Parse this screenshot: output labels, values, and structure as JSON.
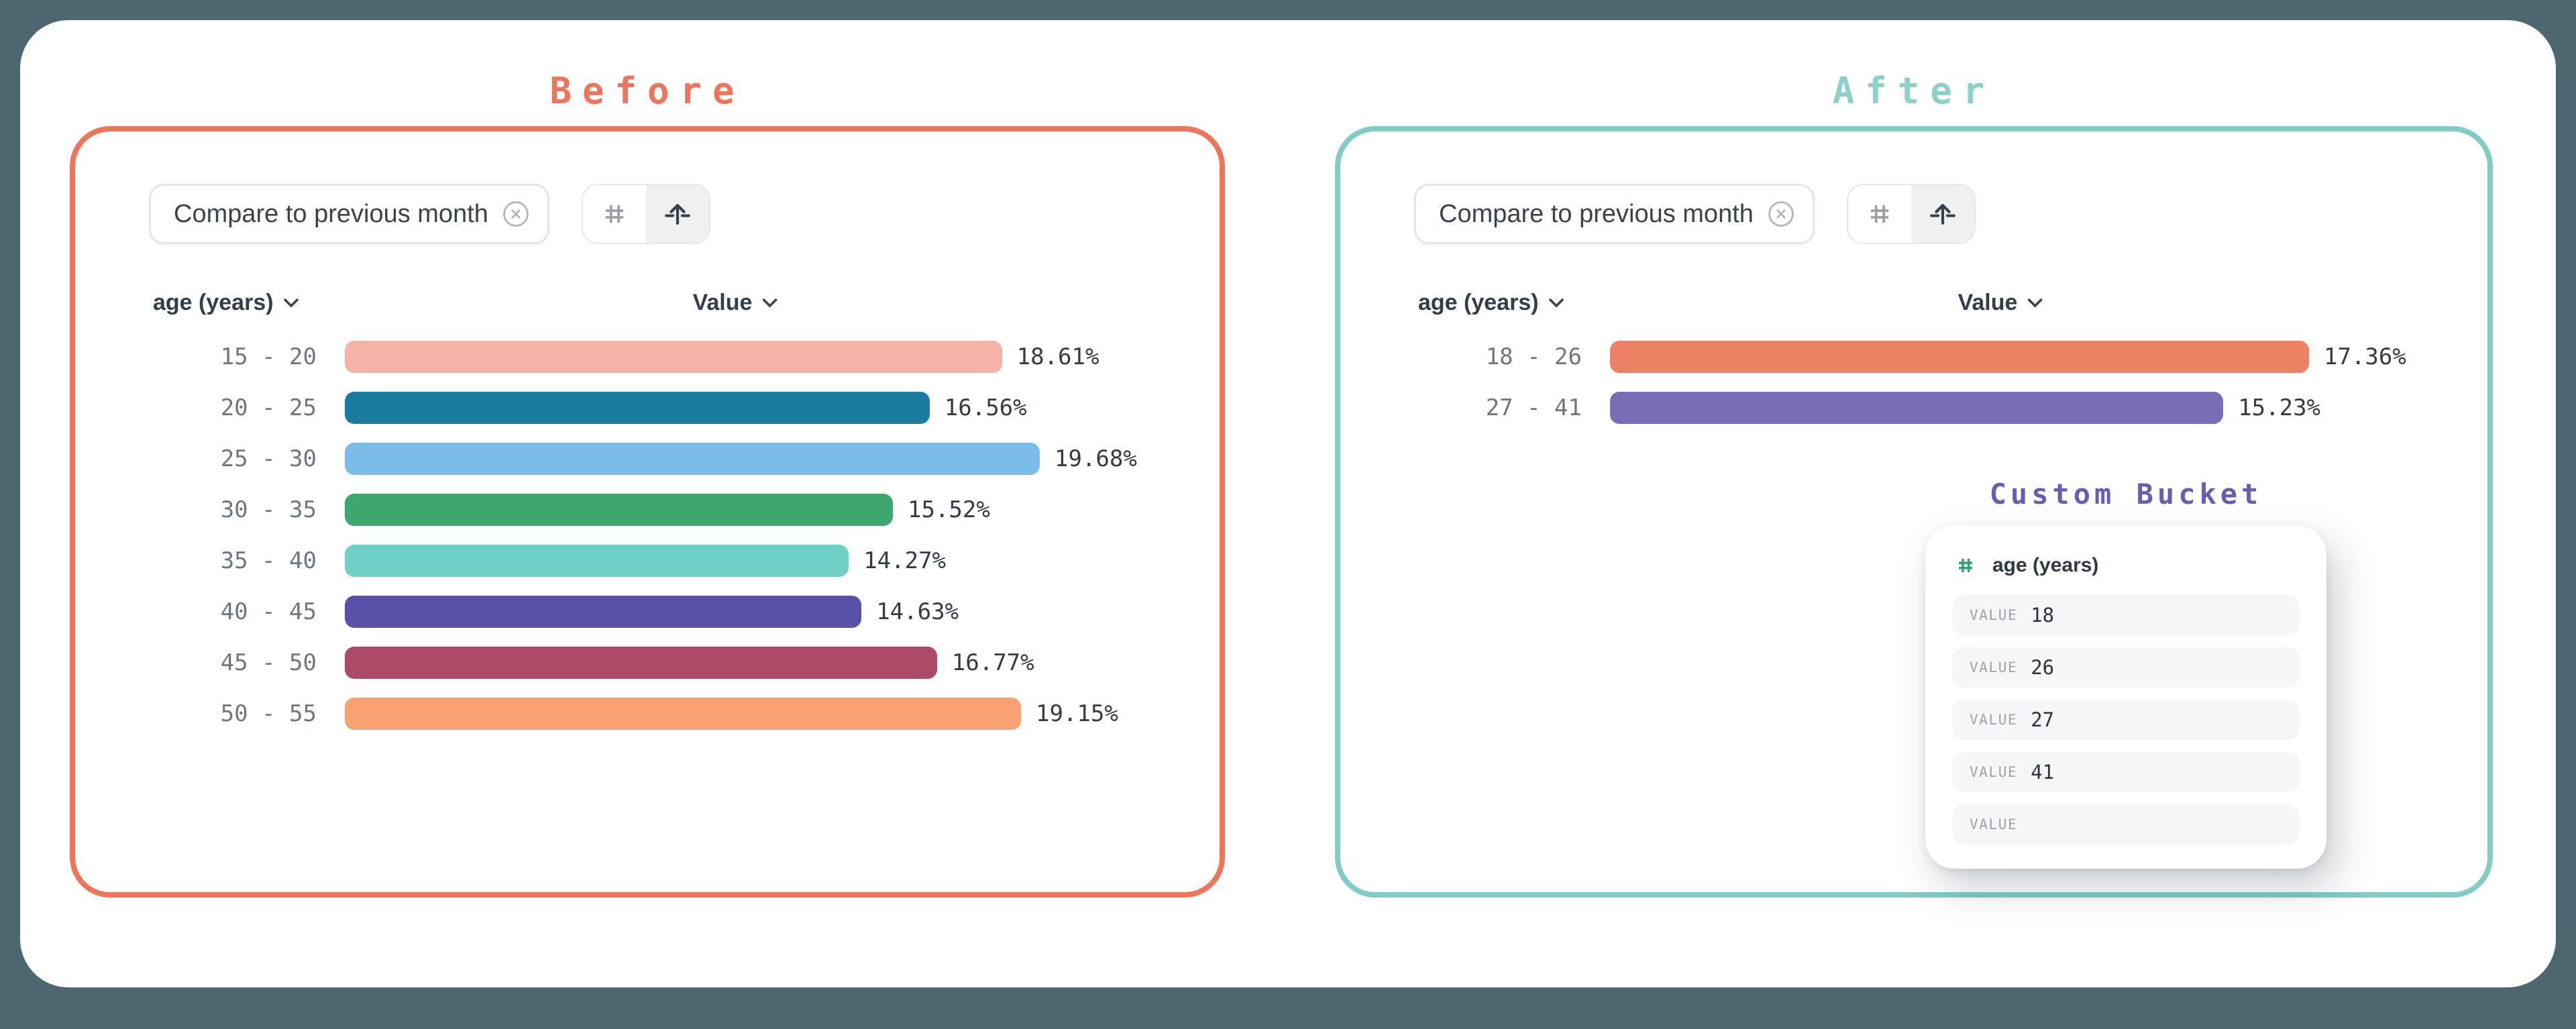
{
  "page": {
    "background": "#4C6770",
    "canvas_background": "#FFFFFF"
  },
  "before": {
    "title": "Before",
    "title_color": "#F0745A",
    "accent_color": "#F0745A",
    "chip": {
      "label": "Compare to previous month",
      "close_icon": "x-circle-icon"
    },
    "toggle": {
      "options": [
        "hash-icon",
        "arrow-up-icon"
      ],
      "active_index": 1
    },
    "chart_data": {
      "type": "bar",
      "orientation": "horizontal",
      "dimension_header": "age (years)",
      "value_header": "Value",
      "categories": [
        "15 - 20",
        "20 - 25",
        "25 - 30",
        "30 - 35",
        "35 - 40",
        "40 - 45",
        "45 - 50",
        "50 - 55"
      ],
      "values": [
        18.61,
        16.56,
        19.68,
        15.52,
        14.27,
        14.63,
        16.77,
        19.15
      ],
      "value_labels": [
        "18.61%",
        "16.56%",
        "19.68%",
        "15.52%",
        "14.27%",
        "14.63%",
        "16.77%",
        "19.15%"
      ],
      "bar_colors": [
        "#F5B2A6",
        "#1A7C9E",
        "#7CBCE9",
        "#3CA86D",
        "#6ED0C6",
        "#5951A7",
        "#AD4A68",
        "#F9A173"
      ],
      "xmax": 19.68
    }
  },
  "after": {
    "title": "After",
    "title_color": "#8CD1C8",
    "accent_color": "#7FCDC5",
    "chip": {
      "label": "Compare to previous month",
      "close_icon": "x-circle-icon"
    },
    "toggle": {
      "options": [
        "hash-icon",
        "arrow-up-icon"
      ],
      "active_index": 1
    },
    "chart_data": {
      "type": "bar",
      "orientation": "horizontal",
      "dimension_header": "age (years)",
      "value_header": "Value",
      "categories": [
        "18 - 26",
        "27 - 41"
      ],
      "values": [
        17.36,
        15.23
      ],
      "value_labels": [
        "17.36%",
        "15.23%"
      ],
      "bar_colors": [
        "#EC8164",
        "#7A6CB7"
      ],
      "xmax": 17.36
    }
  },
  "custom_bucket": {
    "title": "Custom Bucket",
    "title_color": "#675DB7",
    "field_icon_color": "#2BA57E",
    "field_name": "age (years)",
    "rows": [
      {
        "label": "VALUE",
        "value": "18"
      },
      {
        "label": "VALUE",
        "value": "26"
      },
      {
        "label": "VALUE",
        "value": "27"
      },
      {
        "label": "VALUE",
        "value": "41"
      },
      {
        "label": "VALUE",
        "value": ""
      }
    ]
  }
}
